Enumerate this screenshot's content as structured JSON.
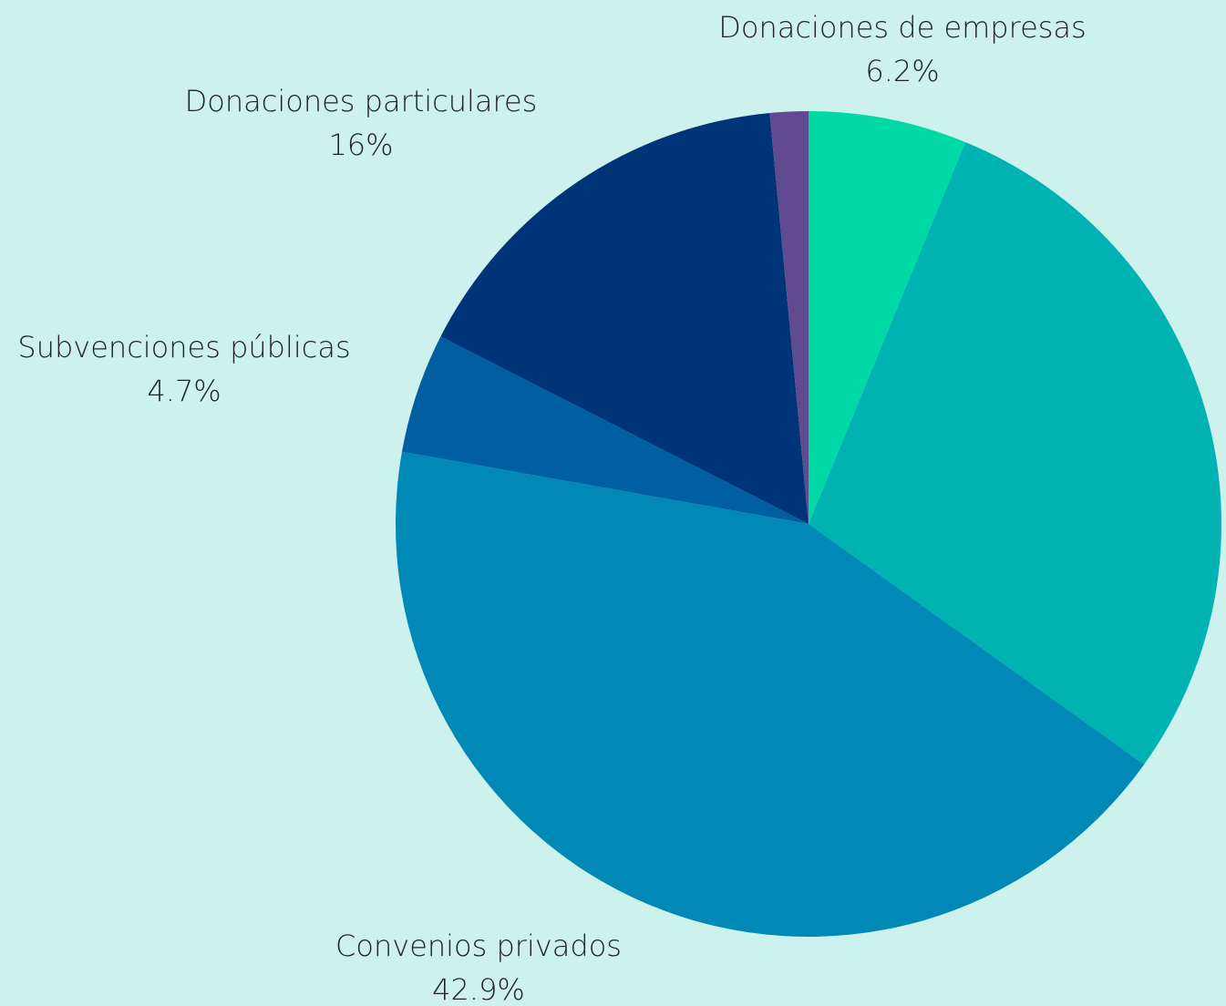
{
  "chart_data": {
    "type": "pie",
    "categories": [
      "Donaciones de empresas",
      null,
      "Convenios privados",
      "Subvenciones públicas",
      "Donaciones particulares",
      null
    ],
    "values": [
      6.2,
      28.7,
      42.9,
      4.7,
      16,
      1.5
    ],
    "value_labels": [
      "6.2%",
      null,
      "42.9%",
      "4.7%",
      "16%",
      null
    ],
    "colors": [
      "#00d9a6",
      "#00b3b3",
      "#0089b6",
      "#005fa0",
      "#003478",
      "#604a90"
    ]
  }
}
